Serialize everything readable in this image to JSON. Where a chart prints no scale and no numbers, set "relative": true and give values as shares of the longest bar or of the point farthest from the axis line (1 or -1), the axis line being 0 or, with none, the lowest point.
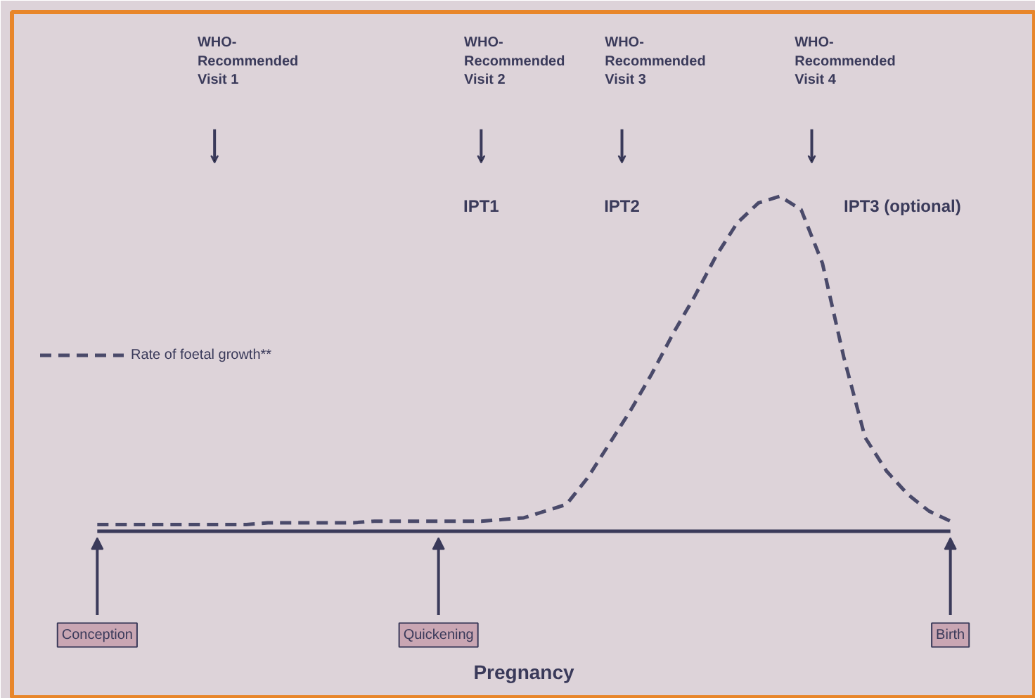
{
  "chart_data": {
    "type": "line",
    "relative": true,
    "xlabel": "Pregnancy",
    "categories": [
      "Conception",
      null,
      null,
      null,
      null,
      null,
      null,
      null,
      null,
      null,
      null,
      null,
      null,
      null,
      null,
      null,
      "Quickening",
      null,
      null,
      null,
      null,
      null,
      null,
      null,
      null,
      null,
      null,
      null,
      null,
      null,
      null,
      null,
      null,
      null,
      null,
      null,
      null,
      null,
      null,
      null,
      "Birth"
    ],
    "series": [
      {
        "name": "Rate of foetal growth**",
        "color": "#4a4a6a",
        "values": [
          0.02,
          0.02,
          0.02,
          0.02,
          0.02,
          0.02,
          0.02,
          0.02,
          0.025,
          0.025,
          0.025,
          0.025,
          0.025,
          0.03,
          0.03,
          0.03,
          0.03,
          0.03,
          0.03,
          0.035,
          0.04,
          0.06,
          0.08,
          0.16,
          0.26,
          0.36,
          0.47,
          0.59,
          0.7,
          0.82,
          0.92,
          0.98,
          1.0,
          0.96,
          0.8,
          0.52,
          0.28,
          0.18,
          0.11,
          0.06,
          0.03
        ]
      }
    ],
    "line_style": "dashed",
    "legend": "left",
    "grid": false,
    "tick_labels": false,
    "annotations": [
      "WHO-\nRecommended\nVisit 1",
      "WHO-\nRecommended\nVisit 2",
      "WHO-\nRecommended\nVisit 3",
      "WHO-\nRecommended\nVisit 4",
      "IPT1",
      "IPT2",
      "IPT3 (optional)"
    ]
  }
}
